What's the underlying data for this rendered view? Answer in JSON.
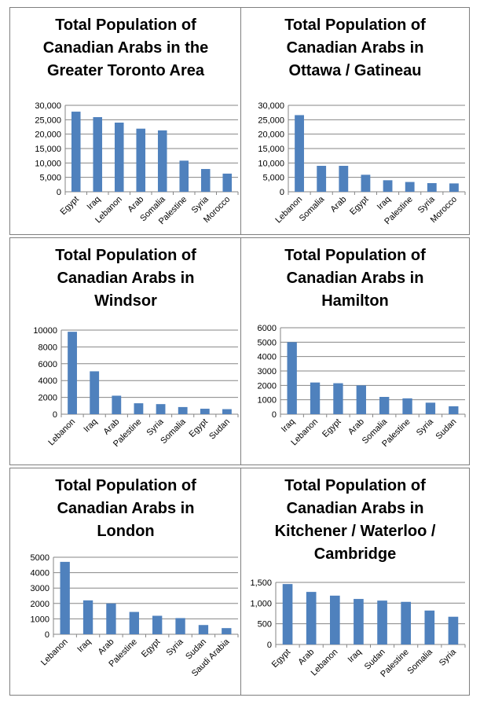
{
  "chart_data": [
    {
      "type": "bar",
      "title": "Total Population of Canadian Arabs in the Greater Toronto Area",
      "categories": [
        "Egypt",
        "Iraq",
        "Lebanon",
        "Arab",
        "Somalia",
        "Palestine",
        "Syria",
        "Morocco"
      ],
      "values": [
        27800,
        25900,
        24000,
        21900,
        21300,
        10800,
        7900,
        6300
      ],
      "yticks": [
        "0",
        "5,000",
        "10,000",
        "15,000",
        "20,000",
        "25,000",
        "30,000"
      ],
      "ylim": [
        0,
        30000
      ],
      "xlabel": "",
      "ylabel": "",
      "grid": true,
      "bar_color": "#4f81bd"
    },
    {
      "type": "bar",
      "title": "Total Population of Canadian Arabs in Ottawa / Gatineau",
      "categories": [
        "Lebanon",
        "Somalia",
        "Arab",
        "Egypt",
        "Iraq",
        "Palestine",
        "Syria",
        "Morocco"
      ],
      "values": [
        26600,
        9000,
        9000,
        5900,
        4000,
        3400,
        3000,
        2900
      ],
      "yticks": [
        "0",
        "5,000",
        "10,000",
        "15,000",
        "20,000",
        "25,000",
        "30,000"
      ],
      "ylim": [
        0,
        30000
      ],
      "xlabel": "",
      "ylabel": "",
      "grid": true,
      "bar_color": "#4f81bd"
    },
    {
      "type": "bar",
      "title": "Total Population of Canadian Arabs in Windsor",
      "categories": [
        "Lebanon",
        "Iraq",
        "Arab",
        "Palestine",
        "Syria",
        "Somalia",
        "Egypt",
        "Sudan"
      ],
      "values": [
        9800,
        5100,
        2200,
        1300,
        1200,
        850,
        650,
        600
      ],
      "yticks": [
        "0",
        "2000",
        "4000",
        "6000",
        "8000",
        "10000"
      ],
      "ylim": [
        0,
        10000
      ],
      "xlabel": "",
      "ylabel": "",
      "grid": true,
      "bar_color": "#4f81bd"
    },
    {
      "type": "bar",
      "title": "Total Population of Canadian Arabs in Hamilton",
      "categories": [
        "Iraq",
        "Lebanon",
        "Egypt",
        "Arab",
        "Somalia",
        "Palestine",
        "Syria",
        "Sudan"
      ],
      "values": [
        5000,
        2200,
        2150,
        2000,
        1200,
        1100,
        800,
        550
      ],
      "yticks": [
        "0",
        "1000",
        "2000",
        "3000",
        "4000",
        "5000",
        "6000"
      ],
      "ylim": [
        0,
        6000
      ],
      "xlabel": "",
      "ylabel": "",
      "grid": true,
      "bar_color": "#4f81bd"
    },
    {
      "type": "bar",
      "title": "Total Population of Canadian Arabs in London",
      "categories": [
        "Lebanon",
        "Iraq",
        "Arab",
        "Palestine",
        "Egypt",
        "Syria",
        "Sudan",
        "Saudi Arabia"
      ],
      "values": [
        4700,
        2200,
        2000,
        1450,
        1200,
        1050,
        600,
        400
      ],
      "yticks": [
        "0",
        "1000",
        "2000",
        "3000",
        "4000",
        "5000"
      ],
      "ylim": [
        0,
        5000
      ],
      "xlabel": "",
      "ylabel": "",
      "grid": true,
      "bar_color": "#4f81bd"
    },
    {
      "type": "bar",
      "title": "Total Population of Canadian Arabs in Kitchener / Waterloo / Cambridge",
      "categories": [
        "Egypt",
        "Arab",
        "Lebanon",
        "Iraq",
        "Sudan",
        "Palestine",
        "Somalia",
        "Syria"
      ],
      "values": [
        1460,
        1270,
        1180,
        1100,
        1060,
        1030,
        820,
        670
      ],
      "yticks": [
        "0",
        "500",
        "1,000",
        "1,500"
      ],
      "ylim": [
        0,
        1500
      ],
      "xlabel": "",
      "ylabel": "",
      "grid": true,
      "bar_color": "#4f81bd"
    }
  ]
}
